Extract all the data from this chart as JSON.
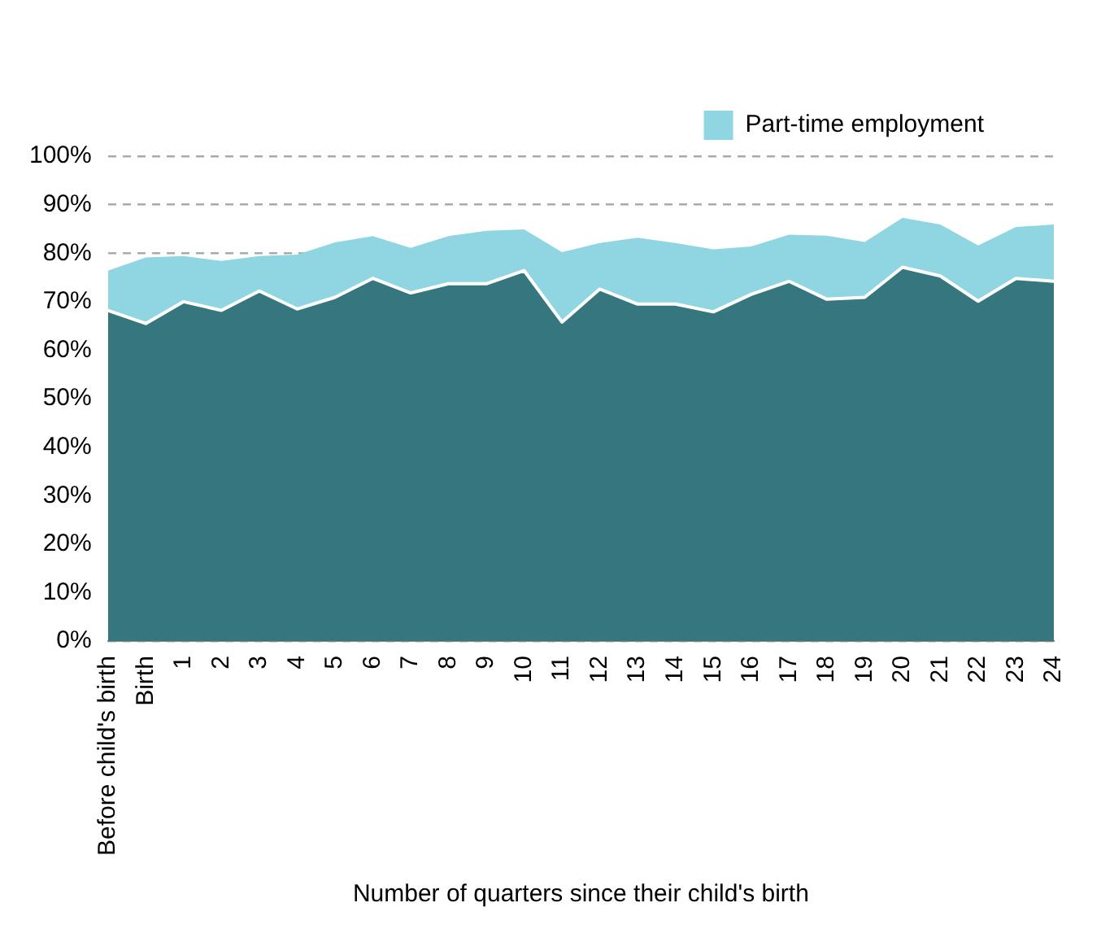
{
  "chart_data": {
    "type": "area",
    "stacked": true,
    "xlabel": "Number of quarters since their child's birth",
    "categories": [
      "Before child's birth",
      "Birth",
      "1",
      "2",
      "3",
      "4",
      "5",
      "6",
      "7",
      "8",
      "9",
      "10",
      "11",
      "12",
      "13",
      "14",
      "15",
      "16",
      "17",
      "18",
      "19",
      "20",
      "21",
      "22",
      "23",
      "24"
    ],
    "series": [
      {
        "color": "#36777f",
        "values": [
          68.2,
          65.5,
          70.0,
          68.2,
          72.2,
          68.5,
          70.9,
          74.8,
          71.8,
          73.7,
          73.7,
          76.4,
          65.8,
          72.6,
          69.5,
          69.5,
          67.9,
          71.5,
          74.2,
          70.5,
          70.9,
          77.1,
          75.3,
          70.1,
          74.8,
          74.2
        ]
      },
      {
        "name": "Part-time employment",
        "color": "#8fd5e2",
        "values": [
          8.2,
          13.6,
          9.4,
          10.2,
          7.2,
          11.2,
          11.3,
          8.7,
          9.3,
          9.8,
          10.9,
          8.5,
          14.4,
          9.5,
          13.7,
          12.6,
          12.9,
          9.9,
          9.6,
          13.1,
          11.4,
          10.2,
          10.6,
          11.5,
          10.6,
          11.7
        ]
      }
    ],
    "ylim": [
      0,
      100
    ],
    "yticks": [
      {
        "value": 0,
        "label": "0%"
      },
      {
        "value": 10,
        "label": "10%"
      },
      {
        "value": 20,
        "label": "20%"
      },
      {
        "value": 30,
        "label": "30%"
      },
      {
        "value": 40,
        "label": "40%"
      },
      {
        "value": 50,
        "label": "50%"
      },
      {
        "value": 60,
        "label": "60%"
      },
      {
        "value": 70,
        "label": "70%"
      },
      {
        "value": 80,
        "label": "80%"
      },
      {
        "value": 90,
        "label": "90%"
      },
      {
        "value": 100,
        "label": "100%"
      }
    ],
    "grid": "y",
    "legend": "top right"
  }
}
